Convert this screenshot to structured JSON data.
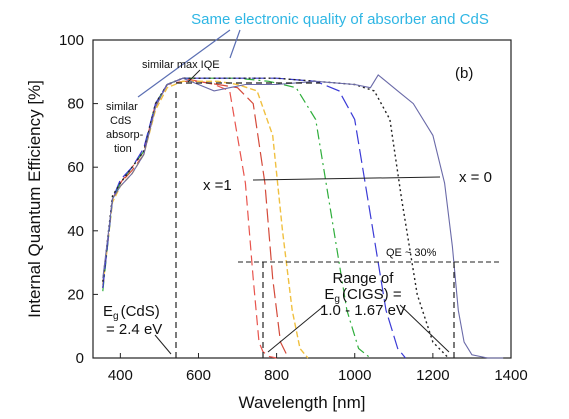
{
  "chart_data": {
    "type": "line",
    "title": "Same electronic quality of absorber and CdS",
    "panel_label": "(b)",
    "xlabel": "Wavelength [nm]",
    "ylabel": "Internal Quantum Efficiency [%]",
    "xlim": [
      330,
      1400
    ],
    "ylim": [
      0,
      100
    ],
    "xticks": [
      400,
      600,
      800,
      1000,
      1200,
      1400
    ],
    "yticks": [
      0,
      20,
      40,
      60,
      80,
      100
    ],
    "grid": false,
    "colors": {
      "title": "#2fb6e4",
      "axes": "#222222",
      "annotation_arrow": "#5b6fb3",
      "series": [
        "#e8544d",
        "#d44a3a",
        "#f0c040",
        "#2fae3c",
        "#3b3bd6",
        "#222222",
        "#6a6aa8"
      ]
    },
    "annotations": {
      "similar_max_iqe": "similar max IQE",
      "similar_cds": [
        "similar",
        "CdS",
        "absorp-",
        "tion"
      ],
      "x1": "x  =1",
      "x0": "x = 0",
      "qe30": "QE ~ 30%",
      "range_label": [
        "Range of",
        "(CIGS) =",
        "1.0 - 1.67 eV"
      ],
      "range_label_e": "E",
      "range_label_sub": "g",
      "eg_cds": [
        "(CdS)",
        "= 2.4 eV"
      ],
      "eg_cds_e": "E",
      "eg_cds_sub": "g"
    },
    "series": [
      {
        "x": [
          355,
          380,
          400,
          430,
          460,
          490,
          520,
          560,
          600,
          640,
          680,
          720,
          740,
          755,
          765,
          780,
          800
        ],
        "values": [
          22,
          50,
          55,
          60,
          65,
          80,
          86,
          88,
          87,
          86,
          84,
          55,
          25,
          5,
          2,
          0.5,
          0
        ]
      },
      {
        "x": [
          355,
          380,
          400,
          430,
          460,
          490,
          520,
          560,
          600,
          650,
          700,
          740,
          770,
          790,
          810,
          830
        ],
        "values": [
          22,
          50,
          55,
          59,
          64,
          79,
          86,
          87,
          87,
          86,
          85,
          80,
          55,
          25,
          5,
          0
        ]
      },
      {
        "x": [
          355,
          380,
          400,
          430,
          460,
          490,
          520,
          560,
          600,
          650,
          700,
          750,
          790,
          815,
          840,
          860,
          880
        ],
        "values": [
          23,
          49,
          54,
          58,
          64,
          78,
          85,
          87,
          87,
          87,
          86,
          84,
          70,
          40,
          15,
          3,
          0
        ]
      },
      {
        "x": [
          355,
          380,
          400,
          430,
          460,
          490,
          520,
          560,
          620,
          700,
          780,
          850,
          900,
          940,
          980,
          1010,
          1040
        ],
        "values": [
          21,
          50,
          55,
          60,
          65,
          80,
          86,
          88,
          88,
          88,
          87,
          85,
          75,
          45,
          15,
          3,
          0
        ]
      },
      {
        "x": [
          355,
          380,
          400,
          430,
          460,
          490,
          520,
          560,
          620,
          700,
          800,
          900,
          960,
          1000,
          1040,
          1080,
          1110,
          1130
        ],
        "values": [
          22,
          50,
          56,
          60,
          66,
          80,
          86,
          88,
          88,
          88,
          88,
          87,
          84,
          75,
          45,
          15,
          3,
          0
        ]
      },
      {
        "x": [
          355,
          380,
          400,
          430,
          460,
          490,
          520,
          560,
          620,
          700,
          800,
          900,
          1000,
          1050,
          1090,
          1120,
          1160,
          1200,
          1240
        ],
        "values": [
          24,
          51,
          55,
          60,
          65,
          80,
          86,
          88,
          88,
          88,
          88,
          87,
          86,
          84,
          75,
          50,
          20,
          5,
          0
        ]
      },
      {
        "x": [
          355,
          380,
          400,
          430,
          460,
          490,
          520,
          560,
          600,
          640,
          680,
          720,
          800,
          900,
          1000,
          1040,
          1060,
          1080,
          1110,
          1150,
          1200,
          1230,
          1250,
          1265,
          1280,
          1300,
          1340,
          1380
        ],
        "values": [
          25,
          50,
          54,
          58,
          64,
          79,
          86,
          88,
          86,
          84,
          85,
          86,
          86,
          87,
          86,
          85,
          89,
          87,
          84,
          80,
          70,
          55,
          35,
          15,
          5,
          1,
          0,
          0
        ]
      }
    ]
  }
}
